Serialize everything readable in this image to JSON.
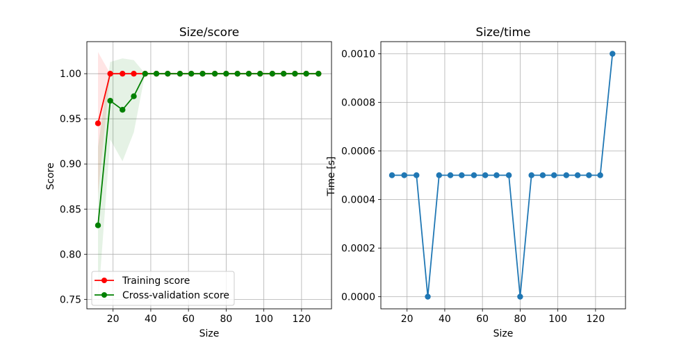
{
  "figure": {
    "background": "#ffffff",
    "grid_color": "#b0b0b0",
    "axis_color": "#000000"
  },
  "chart_data": [
    {
      "type": "line",
      "title": "Size/score",
      "xlabel": "Size",
      "ylabel": "Score",
      "xlim": [
        6.1,
        135.9
      ],
      "ylim": [
        0.7395,
        1.0355
      ],
      "xticks": [
        20,
        40,
        60,
        80,
        100,
        120
      ],
      "xtick_labels": [
        "20",
        "40",
        "60",
        "80",
        "100",
        "120"
      ],
      "yticks": [
        0.75,
        0.8,
        0.85,
        0.9,
        0.95,
        1.0
      ],
      "ytick_labels": [
        "0.75",
        "0.80",
        "0.85",
        "0.90",
        "0.95",
        "1.00"
      ],
      "grid": true,
      "legend_position": "lower-left",
      "x": [
        12,
        18.5,
        25,
        31,
        37,
        43,
        49,
        55.5,
        61.5,
        67.5,
        74,
        80,
        86,
        92,
        98,
        104.5,
        110.5,
        116.5,
        122.5,
        129
      ],
      "series": [
        {
          "name": "Training score",
          "color": "#ff0000",
          "marker": "circle",
          "values": [
            0.945,
            1.0,
            1.0,
            1.0,
            1.0,
            1.0,
            1.0,
            1.0,
            1.0,
            1.0,
            1.0,
            1.0,
            1.0,
            1.0,
            1.0,
            1.0,
            1.0,
            1.0,
            1.0,
            1.0
          ],
          "band_lower": [
            0.866,
            1.0,
            1.0,
            1.0,
            1.0,
            1.0,
            1.0,
            1.0,
            1.0,
            1.0,
            1.0,
            1.0,
            1.0,
            1.0,
            1.0,
            1.0,
            1.0,
            1.0,
            1.0,
            1.0
          ],
          "band_upper": [
            1.024,
            1.0,
            1.0,
            1.0,
            1.0,
            1.0,
            1.0,
            1.0,
            1.0,
            1.0,
            1.0,
            1.0,
            1.0,
            1.0,
            1.0,
            1.0,
            1.0,
            1.0,
            1.0,
            1.0
          ]
        },
        {
          "name": "Cross-validation score",
          "color": "#008000",
          "marker": "circle",
          "values": [
            0.832,
            0.97,
            0.96,
            0.975,
            1.0,
            1.0,
            1.0,
            1.0,
            1.0,
            1.0,
            1.0,
            1.0,
            1.0,
            1.0,
            1.0,
            1.0,
            1.0,
            1.0,
            1.0,
            1.0
          ],
          "band_lower": [
            0.745,
            0.927,
            0.903,
            0.935,
            1.0,
            1.0,
            1.0,
            1.0,
            1.0,
            1.0,
            1.0,
            1.0,
            1.0,
            1.0,
            1.0,
            1.0,
            1.0,
            1.0,
            1.0,
            1.0
          ],
          "band_upper": [
            0.919,
            1.013,
            1.017,
            1.015,
            1.0,
            1.0,
            1.0,
            1.0,
            1.0,
            1.0,
            1.0,
            1.0,
            1.0,
            1.0,
            1.0,
            1.0,
            1.0,
            1.0,
            1.0,
            1.0
          ]
        }
      ]
    },
    {
      "type": "line",
      "title": "Size/time",
      "xlabel": "Size",
      "ylabel": "Time [s]",
      "xlim": [
        6.1,
        135.9
      ],
      "ylim": [
        -5e-05,
        0.00105
      ],
      "xticks": [
        20,
        40,
        60,
        80,
        100,
        120
      ],
      "xtick_labels": [
        "20",
        "40",
        "60",
        "80",
        "100",
        "120"
      ],
      "yticks": [
        0,
        0.0002,
        0.0004,
        0.0006,
        0.0008,
        0.001
      ],
      "ytick_labels": [
        "0.0000",
        "0.0002",
        "0.0004",
        "0.0006",
        "0.0008",
        "0.0010"
      ],
      "grid": true,
      "x": [
        12,
        18.5,
        25,
        31,
        37,
        43,
        49,
        55.5,
        61.5,
        67.5,
        74,
        80,
        86,
        92,
        98,
        104.5,
        110.5,
        116.5,
        122.5,
        129
      ],
      "series": [
        {
          "color": "#1f77b4",
          "marker": "circle",
          "values": [
            0.0005,
            0.0005,
            0.0005,
            0.0,
            0.0005,
            0.0005,
            0.0005,
            0.0005,
            0.0005,
            0.0005,
            0.0005,
            0.0,
            0.0005,
            0.0005,
            0.0005,
            0.0005,
            0.0005,
            0.0005,
            0.0005,
            0.001
          ]
        }
      ]
    }
  ]
}
